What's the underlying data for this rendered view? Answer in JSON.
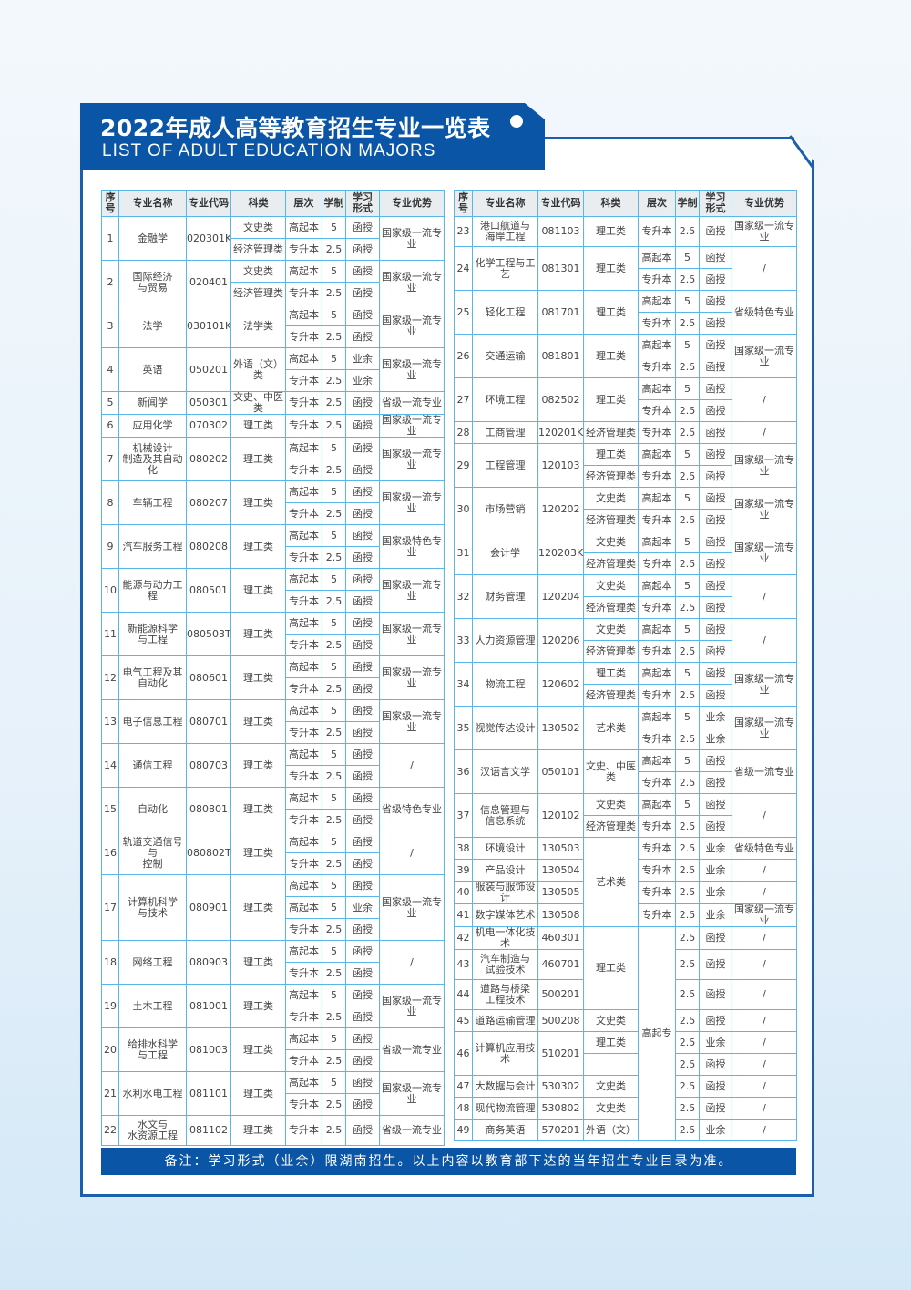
{
  "header": {
    "title_cn": "2022年成人高等教育招生专业一览表",
    "title_en": "LIST OF ADULT EDUCATION MAJORS"
  },
  "colors": {
    "brand_blue": "#0a55a6",
    "grid_blue": "#58b7e8",
    "header_gray": "#e9edf0"
  },
  "columns": [
    "序\n号",
    "专业名称",
    "专业代码",
    "科类",
    "层次",
    "学制",
    "学习\n形式",
    "专业优势"
  ],
  "left_table": [
    {
      "no": "1",
      "name": "金融学",
      "code": "020301K",
      "lines": [
        {
          "cat": "文史类",
          "level": "高起本",
          "years": "5",
          "mode": "函授",
          "adv": "国家级一流专业"
        },
        {
          "cat": "经济管理类",
          "level": "专升本",
          "years": "2.5",
          "mode": "函授",
          "adv": null
        }
      ]
    },
    {
      "no": "2",
      "name": "国际经济\n与贸易",
      "code": "020401",
      "lines": [
        {
          "cat": "文史类",
          "level": "高起本",
          "years": "5",
          "mode": "函授",
          "adv": "国家级一流专业"
        },
        {
          "cat": "经济管理类",
          "level": "专升本",
          "years": "2.5",
          "mode": "函授",
          "adv": null
        }
      ]
    },
    {
      "no": "3",
      "name": "法学",
      "code": "030101K",
      "lines": [
        {
          "cat": "法学类",
          "level": "高起本",
          "years": "5",
          "mode": "函授",
          "adv": "国家级一流专业"
        },
        {
          "cat": null,
          "level": "专升本",
          "years": "2.5",
          "mode": "函授",
          "adv": null
        }
      ]
    },
    {
      "no": "4",
      "name": "英语",
      "code": "050201",
      "lines": [
        {
          "cat": "外语（文）类",
          "level": "高起本",
          "years": "5",
          "mode": "业余",
          "adv": "国家级一流专业"
        },
        {
          "cat": null,
          "level": "专升本",
          "years": "2.5",
          "mode": "业余",
          "adv": null
        }
      ]
    },
    {
      "no": "5",
      "name": "新闻学",
      "code": "050301",
      "lines": [
        {
          "cat": "文史、中医类",
          "level": "专升本",
          "years": "2.5",
          "mode": "函授",
          "adv": "省级一流专业"
        }
      ]
    },
    {
      "no": "6",
      "name": "应用化学",
      "code": "070302",
      "lines": [
        {
          "cat": "理工类",
          "level": "专升本",
          "years": "2.5",
          "mode": "函授",
          "adv": "国家级一流专业"
        }
      ]
    },
    {
      "no": "7",
      "name": "机械设计\n制造及其自动化",
      "code": "080202",
      "lines": [
        {
          "cat": "理工类",
          "level": "高起本",
          "years": "5",
          "mode": "函授",
          "adv": "国家级一流专业"
        },
        {
          "cat": null,
          "level": "专升本",
          "years": "2.5",
          "mode": "函授",
          "adv": null
        }
      ]
    },
    {
      "no": "8",
      "name": "车辆工程",
      "code": "080207",
      "lines": [
        {
          "cat": "理工类",
          "level": "高起本",
          "years": "5",
          "mode": "函授",
          "adv": "国家级一流专业"
        },
        {
          "cat": null,
          "level": "专升本",
          "years": "2.5",
          "mode": "函授",
          "adv": null
        }
      ]
    },
    {
      "no": "9",
      "name": "汽车服务工程",
      "code": "080208",
      "lines": [
        {
          "cat": "理工类",
          "level": "高起本",
          "years": "5",
          "mode": "函授",
          "adv": "国家级特色专业"
        },
        {
          "cat": null,
          "level": "专升本",
          "years": "2.5",
          "mode": "函授",
          "adv": null
        }
      ]
    },
    {
      "no": "10",
      "name": "能源与动力工程",
      "code": "080501",
      "lines": [
        {
          "cat": "理工类",
          "level": "高起本",
          "years": "5",
          "mode": "函授",
          "adv": "国家级一流专业"
        },
        {
          "cat": null,
          "level": "专升本",
          "years": "2.5",
          "mode": "函授",
          "adv": null
        }
      ]
    },
    {
      "no": "11",
      "name": "新能源科学\n与工程",
      "code": "080503T",
      "lines": [
        {
          "cat": "理工类",
          "level": "高起本",
          "years": "5",
          "mode": "函授",
          "adv": "国家级一流专业"
        },
        {
          "cat": null,
          "level": "专升本",
          "years": "2.5",
          "mode": "函授",
          "adv": null
        }
      ]
    },
    {
      "no": "12",
      "name": "电气工程及其\n自动化",
      "code": "080601",
      "lines": [
        {
          "cat": "理工类",
          "level": "高起本",
          "years": "5",
          "mode": "函授",
          "adv": "国家级一流专业"
        },
        {
          "cat": null,
          "level": "专升本",
          "years": "2.5",
          "mode": "函授",
          "adv": null
        }
      ]
    },
    {
      "no": "13",
      "name": "电子信息工程",
      "code": "080701",
      "lines": [
        {
          "cat": "理工类",
          "level": "高起本",
          "years": "5",
          "mode": "函授",
          "adv": "国家级一流专业"
        },
        {
          "cat": null,
          "level": "专升本",
          "years": "2.5",
          "mode": "函授",
          "adv": null
        }
      ]
    },
    {
      "no": "14",
      "name": "通信工程",
      "code": "080703",
      "lines": [
        {
          "cat": "理工类",
          "level": "高起本",
          "years": "5",
          "mode": "函授",
          "adv": "/"
        },
        {
          "cat": null,
          "level": "专升本",
          "years": "2.5",
          "mode": "函授",
          "adv": null
        }
      ]
    },
    {
      "no": "15",
      "name": "自动化",
      "code": "080801",
      "lines": [
        {
          "cat": "理工类",
          "level": "高起本",
          "years": "5",
          "mode": "函授",
          "adv": "省级特色专业"
        },
        {
          "cat": null,
          "level": "专升本",
          "years": "2.5",
          "mode": "函授",
          "adv": null
        }
      ]
    },
    {
      "no": "16",
      "name": "轨道交通信号与\n控制",
      "code": "080802T",
      "lines": [
        {
          "cat": "理工类",
          "level": "高起本",
          "years": "5",
          "mode": "函授",
          "adv": "/"
        },
        {
          "cat": null,
          "level": "专升本",
          "years": "2.5",
          "mode": "函授",
          "adv": null
        }
      ]
    },
    {
      "no": "17",
      "name": "计算机科学\n与技术",
      "code": "080901",
      "lines": [
        {
          "cat": "理工类",
          "level": "高起本",
          "years": "5",
          "mode": "函授",
          "adv": "国家级一流专业"
        },
        {
          "cat": null,
          "level": "高起本",
          "years": "5",
          "mode": "业余",
          "adv": null
        },
        {
          "cat": null,
          "level": "专升本",
          "years": "2.5",
          "mode": "函授",
          "adv": null
        }
      ]
    },
    {
      "no": "18",
      "name": "网络工程",
      "code": "080903",
      "lines": [
        {
          "cat": "理工类",
          "level": "高起本",
          "years": "5",
          "mode": "函授",
          "adv": "/"
        },
        {
          "cat": null,
          "level": "专升本",
          "years": "2.5",
          "mode": "函授",
          "adv": null
        }
      ]
    },
    {
      "no": "19",
      "name": "土木工程",
      "code": "081001",
      "lines": [
        {
          "cat": "理工类",
          "level": "高起本",
          "years": "5",
          "mode": "函授",
          "adv": "国家级一流专业"
        },
        {
          "cat": null,
          "level": "专升本",
          "years": "2.5",
          "mode": "函授",
          "adv": null
        }
      ]
    },
    {
      "no": "20",
      "name": "给排水科学\n与工程",
      "code": "081003",
      "lines": [
        {
          "cat": "理工类",
          "level": "高起本",
          "years": "5",
          "mode": "函授",
          "adv": "省级一流专业"
        },
        {
          "cat": null,
          "level": "专升本",
          "years": "2.5",
          "mode": "函授",
          "adv": null
        }
      ]
    },
    {
      "no": "21",
      "name": "水利水电工程",
      "code": "081101",
      "lines": [
        {
          "cat": "理工类",
          "level": "高起本",
          "years": "5",
          "mode": "函授",
          "adv": "国家级一流专业"
        },
        {
          "cat": null,
          "level": "专升本",
          "years": "2.5",
          "mode": "函授",
          "adv": null
        }
      ]
    },
    {
      "no": "22",
      "name": "水文与\n水资源工程",
      "code": "081102",
      "lines": [
        {
          "cat": "理工类",
          "level": "专升本",
          "years": "2.5",
          "mode": "函授",
          "adv": "省级一流专业"
        }
      ]
    }
  ],
  "right_table": [
    {
      "no": "23",
      "name": "港口航道与\n海岸工程",
      "code": "081103",
      "lines": [
        {
          "cat": "理工类",
          "level": "专升本",
          "years": "2.5",
          "mode": "函授",
          "adv": "国家级一流专业"
        }
      ]
    },
    {
      "no": "24",
      "name": "化学工程与工艺",
      "code": "081301",
      "lines": [
        {
          "cat": "理工类",
          "level": "高起本",
          "years": "5",
          "mode": "函授",
          "adv": "/"
        },
        {
          "cat": null,
          "level": "专升本",
          "years": "2.5",
          "mode": "函授",
          "adv": null
        }
      ]
    },
    {
      "no": "25",
      "name": "轻化工程",
      "code": "081701",
      "lines": [
        {
          "cat": "理工类",
          "level": "高起本",
          "years": "5",
          "mode": "函授",
          "adv": "省级特色专业"
        },
        {
          "cat": null,
          "level": "专升本",
          "years": "2.5",
          "mode": "函授",
          "adv": null
        }
      ]
    },
    {
      "no": "26",
      "name": "交通运输",
      "code": "081801",
      "lines": [
        {
          "cat": "理工类",
          "level": "高起本",
          "years": "5",
          "mode": "函授",
          "adv": "国家级一流专业"
        },
        {
          "cat": null,
          "level": "专升本",
          "years": "2.5",
          "mode": "函授",
          "adv": null
        }
      ]
    },
    {
      "no": "27",
      "name": "环境工程",
      "code": "082502",
      "lines": [
        {
          "cat": "理工类",
          "level": "高起本",
          "years": "5",
          "mode": "函授",
          "adv": "/"
        },
        {
          "cat": null,
          "level": "专升本",
          "years": "2.5",
          "mode": "函授",
          "adv": null
        }
      ]
    },
    {
      "no": "28",
      "name": "工商管理",
      "code": "120201K",
      "lines": [
        {
          "cat": "经济管理类",
          "level": "专升本",
          "years": "2.5",
          "mode": "函授",
          "adv": "/"
        }
      ]
    },
    {
      "no": "29",
      "name": "工程管理",
      "code": "120103",
      "lines": [
        {
          "cat": "理工类",
          "level": "高起本",
          "years": "5",
          "mode": "函授",
          "adv": "国家级一流专业"
        },
        {
          "cat": "经济管理类",
          "level": "专升本",
          "years": "2.5",
          "mode": "函授",
          "adv": null
        }
      ]
    },
    {
      "no": "30",
      "name": "市场营销",
      "code": "120202",
      "lines": [
        {
          "cat": "文史类",
          "level": "高起本",
          "years": "5",
          "mode": "函授",
          "adv": "国家级一流专业"
        },
        {
          "cat": "经济管理类",
          "level": "专升本",
          "years": "2.5",
          "mode": "函授",
          "adv": null
        }
      ]
    },
    {
      "no": "31",
      "name": "会计学",
      "code": "120203K",
      "lines": [
        {
          "cat": "文史类",
          "level": "高起本",
          "years": "5",
          "mode": "函授",
          "adv": "国家级一流专业"
        },
        {
          "cat": "经济管理类",
          "level": "专升本",
          "years": "2.5",
          "mode": "函授",
          "adv": null
        }
      ]
    },
    {
      "no": "32",
      "name": "财务管理",
      "code": "120204",
      "lines": [
        {
          "cat": "文史类",
          "level": "高起本",
          "years": "5",
          "mode": "函授",
          "adv": "/"
        },
        {
          "cat": "经济管理类",
          "level": "专升本",
          "years": "2.5",
          "mode": "函授",
          "adv": null
        }
      ]
    },
    {
      "no": "33",
      "name": "人力资源管理",
      "code": "120206",
      "lines": [
        {
          "cat": "文史类",
          "level": "高起本",
          "years": "5",
          "mode": "函授",
          "adv": "/"
        },
        {
          "cat": "经济管理类",
          "level": "专升本",
          "years": "2.5",
          "mode": "函授",
          "adv": null
        }
      ]
    },
    {
      "no": "34",
      "name": "物流工程",
      "code": "120602",
      "lines": [
        {
          "cat": "理工类",
          "level": "高起本",
          "years": "5",
          "mode": "函授",
          "adv": "国家级一流专业"
        },
        {
          "cat": "经济管理类",
          "level": "专升本",
          "years": "2.5",
          "mode": "函授",
          "adv": null
        }
      ]
    },
    {
      "no": "35",
      "name": "视觉传达设计",
      "code": "130502",
      "lines": [
        {
          "cat": "艺术类",
          "level": "高起本",
          "years": "5",
          "mode": "业余",
          "adv": "国家级一流专业"
        },
        {
          "cat": null,
          "level": "专升本",
          "years": "2.5",
          "mode": "业余",
          "adv": null
        }
      ]
    },
    {
      "no": "36",
      "name": "汉语言文学",
      "code": "050101",
      "lines": [
        {
          "cat": "文史、中医类",
          "level": "高起本",
          "years": "5",
          "mode": "函授",
          "adv": "省级一流专业"
        },
        {
          "cat": null,
          "level": "专升本",
          "years": "2.5",
          "mode": "函授",
          "adv": null
        }
      ]
    },
    {
      "no": "37",
      "name": "信息管理与\n信息系统",
      "code": "120102",
      "lines": [
        {
          "cat": "文史类",
          "level": "高起本",
          "years": "5",
          "mode": "函授",
          "adv": "/"
        },
        {
          "cat": "经济管理类",
          "level": "专升本",
          "years": "2.5",
          "mode": "函授",
          "adv": null
        }
      ]
    },
    {
      "no": "38",
      "name": "环境设计",
      "code": "130503",
      "lines": [
        {
          "cat": "艺术类",
          "level": "专升本",
          "years": "2.5",
          "mode": "业余",
          "adv": "省级特色专业"
        }
      ]
    },
    {
      "no": "39",
      "name": "产品设计",
      "code": "130504",
      "lines": [
        {
          "cat": null,
          "level": "专升本",
          "years": "2.5",
          "mode": "业余",
          "adv": "/"
        }
      ]
    },
    {
      "no": "40",
      "name": "服装与服饰设计",
      "code": "130505",
      "lines": [
        {
          "cat": null,
          "level": "专升本",
          "years": "2.5",
          "mode": "业余",
          "adv": "/"
        }
      ]
    },
    {
      "no": "41",
      "name": "数字媒体艺术",
      "code": "130508",
      "lines": [
        {
          "cat": null,
          "level": "专升本",
          "years": "2.5",
          "mode": "业余",
          "adv": "国家级一流专业"
        }
      ]
    },
    {
      "no": "42",
      "name": "机电一体化技术",
      "code": "460301",
      "lines": [
        {
          "cat": "理工类",
          "level": "高起专",
          "years": "2.5",
          "mode": "函授",
          "adv": "/"
        }
      ]
    },
    {
      "no": "43",
      "name": "汽车制造与\n试验技术",
      "code": "460701",
      "lines": [
        {
          "cat": null,
          "level": null,
          "years": "2.5",
          "mode": "函授",
          "adv": "/"
        }
      ]
    },
    {
      "no": "44",
      "name": "道路与桥梁\n工程技术",
      "code": "500201",
      "lines": [
        {
          "cat": null,
          "level": null,
          "years": "2.5",
          "mode": "函授",
          "adv": "/"
        }
      ]
    },
    {
      "no": "45",
      "name": "道路运输管理",
      "code": "500208",
      "lines": [
        {
          "cat": "文史类",
          "level": null,
          "years": "2.5",
          "mode": "函授",
          "adv": "/"
        }
      ]
    },
    {
      "no": "46",
      "name": "计算机应用技术",
      "code": "510201",
      "lines": [
        {
          "cat": "理工类",
          "level": null,
          "years": "2.5",
          "mode": "业余",
          "adv": "/"
        },
        {
          "cat": "",
          "level": null,
          "years": "2.5",
          "mode": "函授",
          "adv": "/"
        }
      ]
    },
    {
      "no": "47",
      "name": "大数据与会计",
      "code": "530302",
      "lines": [
        {
          "cat": "文史类",
          "level": null,
          "years": "2.5",
          "mode": "函授",
          "adv": "/"
        }
      ]
    },
    {
      "no": "48",
      "name": "现代物流管理",
      "code": "530802",
      "lines": [
        {
          "cat": "文史类",
          "level": null,
          "years": "2.5",
          "mode": "函授",
          "adv": "/"
        }
      ]
    },
    {
      "no": "49",
      "name": "商务英语",
      "code": "570201",
      "lines": [
        {
          "cat": "外语（文）",
          "level": null,
          "years": "2.5",
          "mode": "业余",
          "adv": "/"
        }
      ]
    }
  ],
  "footer": {
    "note": "备注：学习形式（业余）限湖南招生。以上内容以教育部下达的当年招生专业目录为准。"
  }
}
